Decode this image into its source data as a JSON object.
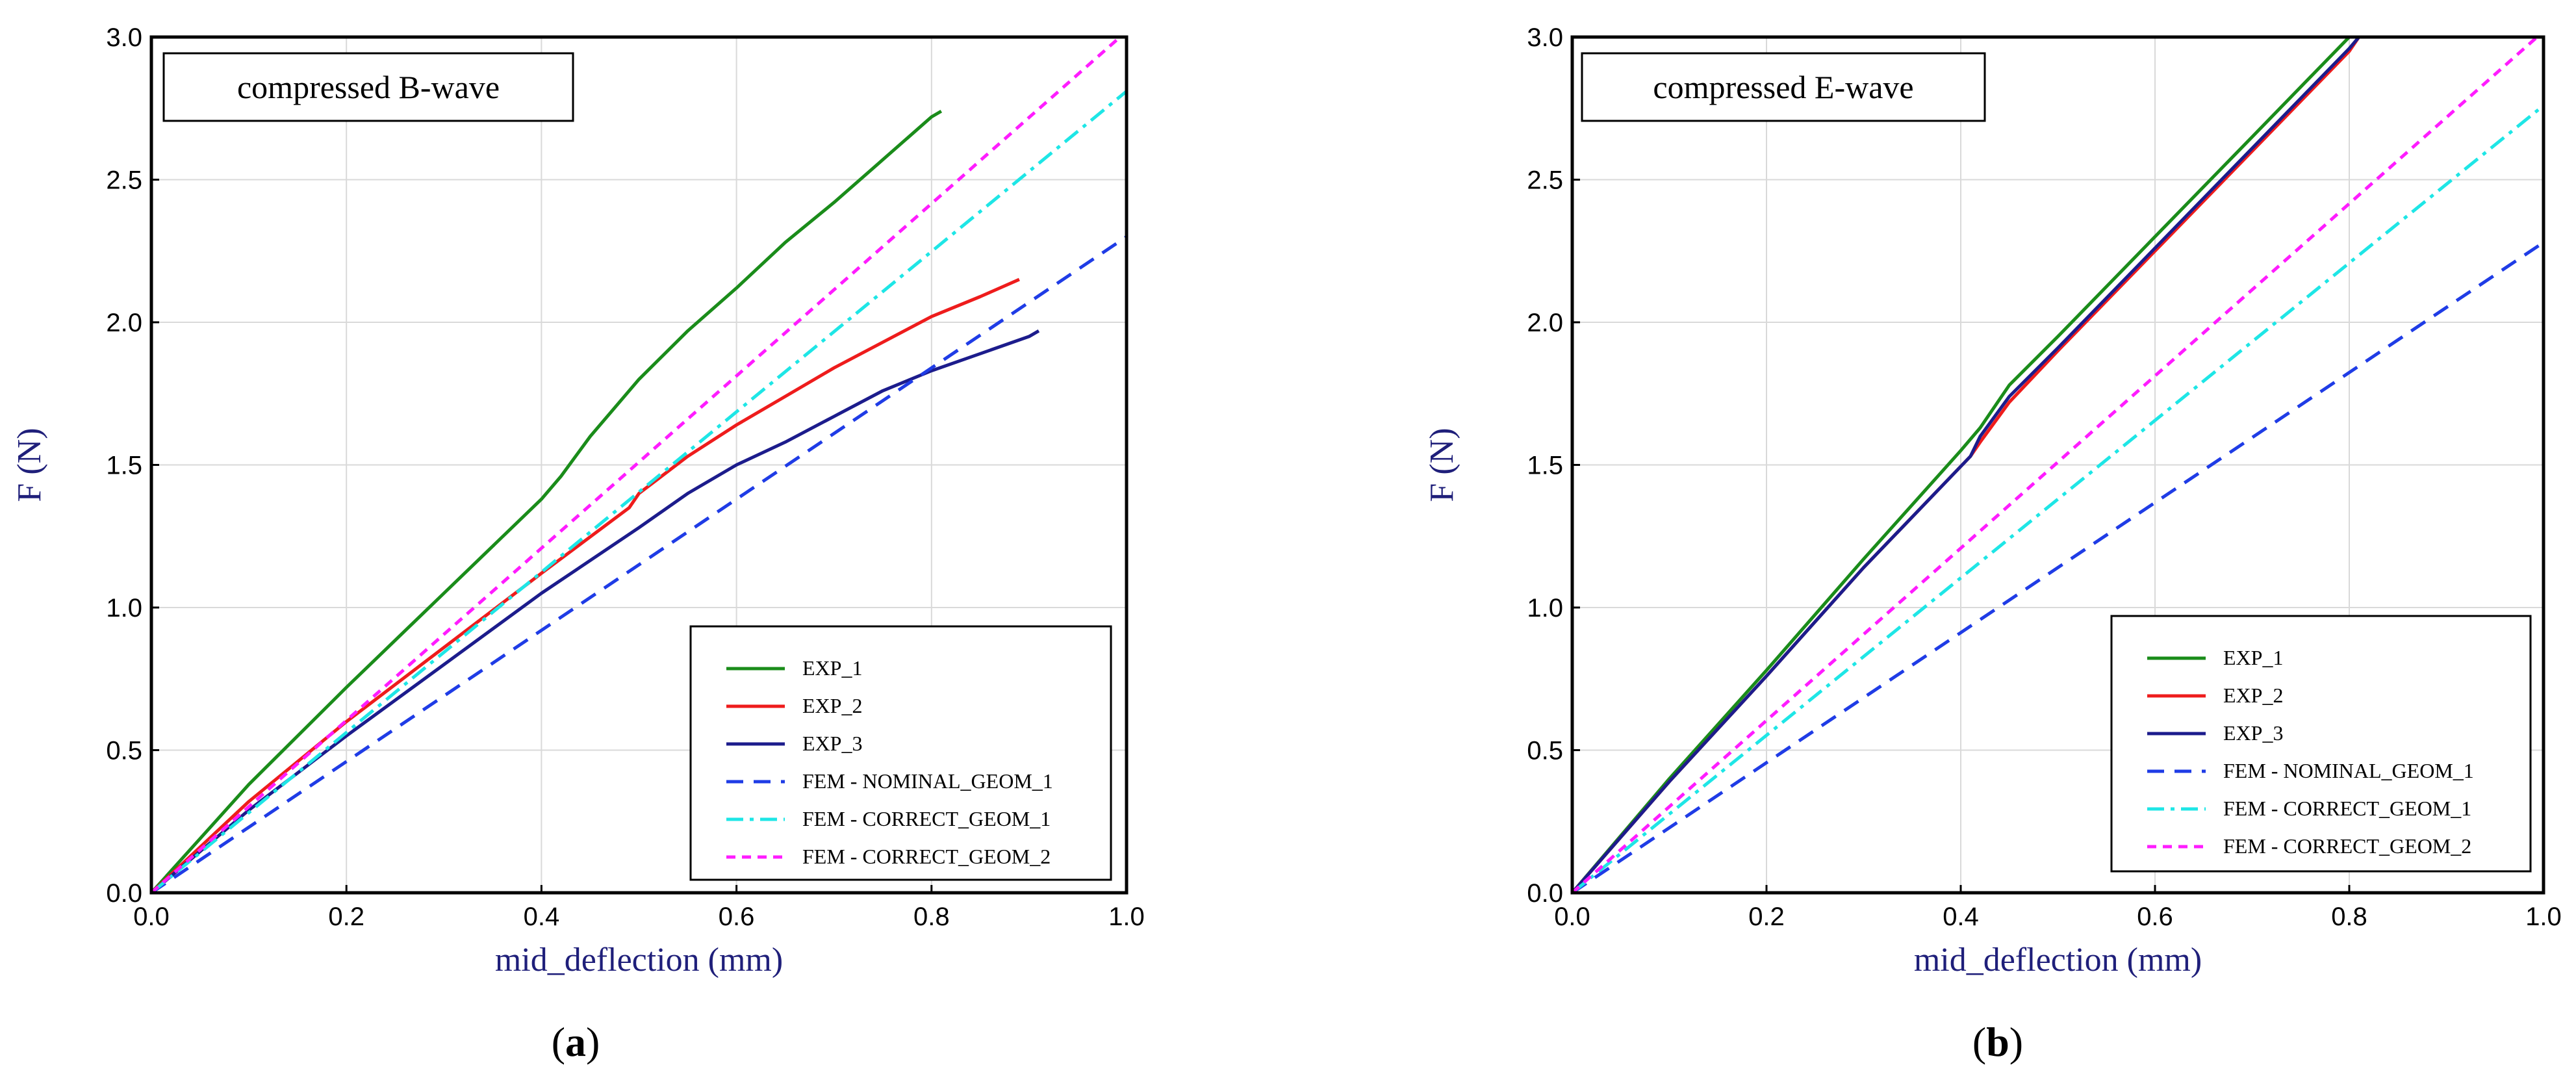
{
  "chart_data": [
    {
      "type": "line",
      "title": "compressed B-wave",
      "xlabel": "mid_deflection (mm)",
      "ylabel": "F (N)",
      "panel": "a",
      "xlim": [
        0,
        1.0
      ],
      "ylim": [
        0,
        3.0
      ],
      "xticks": [
        "0.0",
        "0.2",
        "0.4",
        "0.6",
        "0.8",
        "1.0"
      ],
      "yticks": [
        "0.0",
        "0.5",
        "1.0",
        "1.5",
        "2.0",
        "2.5",
        "3.0"
      ],
      "grid": true,
      "legend": "bottom-right",
      "series": [
        {
          "name": "EXP_1",
          "color": "#1a8c1a",
          "dash": "solid",
          "x": [
            0,
            0.1,
            0.2,
            0.3,
            0.4,
            0.42,
            0.45,
            0.5,
            0.55,
            0.6,
            0.65,
            0.7,
            0.75,
            0.8,
            0.81
          ],
          "y": [
            0,
            0.38,
            0.72,
            1.05,
            1.38,
            1.46,
            1.6,
            1.8,
            1.97,
            2.12,
            2.28,
            2.42,
            2.57,
            2.72,
            2.74
          ]
        },
        {
          "name": "EXP_2",
          "color": "#ee1c1c",
          "dash": "solid",
          "x": [
            0,
            0.1,
            0.2,
            0.3,
            0.4,
            0.49,
            0.5,
            0.55,
            0.6,
            0.65,
            0.7,
            0.75,
            0.8,
            0.85,
            0.89
          ],
          "y": [
            0,
            0.32,
            0.6,
            0.86,
            1.12,
            1.35,
            1.4,
            1.53,
            1.64,
            1.74,
            1.84,
            1.93,
            2.02,
            2.09,
            2.15
          ]
        },
        {
          "name": "EXP_3",
          "color": "#1c1c8c",
          "dash": "solid",
          "x": [
            0,
            0.1,
            0.2,
            0.3,
            0.4,
            0.5,
            0.55,
            0.6,
            0.65,
            0.7,
            0.75,
            0.8,
            0.85,
            0.9,
            0.91
          ],
          "y": [
            0,
            0.29,
            0.55,
            0.8,
            1.05,
            1.28,
            1.4,
            1.5,
            1.58,
            1.67,
            1.76,
            1.83,
            1.89,
            1.95,
            1.97
          ]
        },
        {
          "name": "FEM - NOMINAL_GEOM_1",
          "color": "#1f3ce6",
          "dash": "long",
          "x": [
            0,
            1.0
          ],
          "y": [
            0,
            2.3
          ]
        },
        {
          "name": "FEM - CORRECT_GEOM_1",
          "color": "#1ee6e6",
          "dash": "dashdot",
          "x": [
            0,
            1.0
          ],
          "y": [
            0,
            2.81
          ]
        },
        {
          "name": "FEM - CORRECT_GEOM_2",
          "color": "#ff1cff",
          "dash": "short",
          "x": [
            0,
            1.0
          ],
          "y": [
            0,
            3.02
          ]
        }
      ]
    },
    {
      "type": "line",
      "title": "compressed E-wave",
      "xlabel": "mid_deflection (mm)",
      "ylabel": "F (N)",
      "panel": "b",
      "xlim": [
        0,
        1.0
      ],
      "ylim": [
        0,
        3.0
      ],
      "xticks": [
        "0.0",
        "0.2",
        "0.4",
        "0.6",
        "0.8",
        "1.0"
      ],
      "yticks": [
        "0.0",
        "0.5",
        "1.0",
        "1.5",
        "2.0",
        "2.5",
        "3.0"
      ],
      "grid": true,
      "legend": "bottom-right",
      "series": [
        {
          "name": "EXP_1",
          "color": "#1a8c1a",
          "dash": "solid",
          "x": [
            0,
            0.1,
            0.2,
            0.3,
            0.4,
            0.42,
            0.45,
            0.5,
            0.6,
            0.7,
            0.78,
            0.8
          ],
          "y": [
            0,
            0.4,
            0.78,
            1.17,
            1.55,
            1.63,
            1.78,
            1.95,
            2.3,
            2.65,
            2.93,
            3.0
          ]
        },
        {
          "name": "EXP_2",
          "color": "#ee1c1c",
          "dash": "solid",
          "x": [
            0,
            0.1,
            0.2,
            0.3,
            0.41,
            0.42,
            0.45,
            0.5,
            0.6,
            0.7,
            0.8,
            0.81
          ],
          "y": [
            0,
            0.39,
            0.76,
            1.14,
            1.53,
            1.58,
            1.72,
            1.9,
            2.25,
            2.6,
            2.95,
            3.0
          ]
        },
        {
          "name": "EXP_3",
          "color": "#1c1c8c",
          "dash": "solid",
          "x": [
            0,
            0.1,
            0.2,
            0.3,
            0.41,
            0.42,
            0.45,
            0.5,
            0.6,
            0.7,
            0.8,
            0.81
          ],
          "y": [
            0,
            0.39,
            0.76,
            1.14,
            1.53,
            1.6,
            1.74,
            1.91,
            2.26,
            2.61,
            2.96,
            3.0
          ]
        },
        {
          "name": "FEM - NOMINAL_GEOM_1",
          "color": "#1f3ce6",
          "dash": "long",
          "x": [
            0,
            1.0
          ],
          "y": [
            0,
            2.28
          ]
        },
        {
          "name": "FEM - CORRECT_GEOM_1",
          "color": "#1ee6e6",
          "dash": "dashdot",
          "x": [
            0,
            1.0
          ],
          "y": [
            0,
            2.76
          ]
        },
        {
          "name": "FEM - CORRECT_GEOM_2",
          "color": "#ff1cff",
          "dash": "short",
          "x": [
            0,
            1.0
          ],
          "y": [
            0,
            3.02
          ]
        }
      ]
    }
  ]
}
